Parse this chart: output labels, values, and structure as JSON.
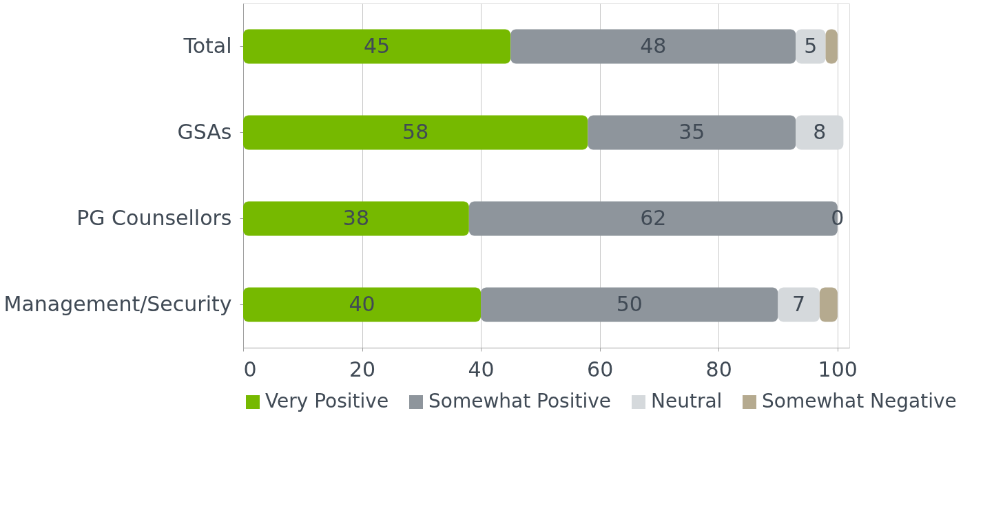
{
  "chart_data": {
    "type": "bar",
    "orientation": "horizontal",
    "stacked": true,
    "categories": [
      "Total",
      "GSAs",
      "PG Counsellors",
      "Management/Security"
    ],
    "series": [
      {
        "name": "Very Positive",
        "color": "#76b900",
        "values": [
          45,
          58,
          38,
          40
        ],
        "value_labels": [
          "45",
          "58",
          "38",
          "40"
        ]
      },
      {
        "name": "Somewhat Positive",
        "color": "#8e959c",
        "values": [
          48,
          35,
          62,
          50
        ],
        "value_labels": [
          "48",
          "35",
          "62",
          "50"
        ]
      },
      {
        "name": "Neutral",
        "color": "#d5d9dc",
        "values": [
          5,
          8,
          0,
          7
        ],
        "value_labels": [
          "5",
          "8",
          "0",
          "7"
        ]
      },
      {
        "name": "Somewhat Negative",
        "color": "#b5aa8f",
        "values": [
          2,
          0,
          0,
          3
        ],
        "value_labels": [
          null,
          null,
          null,
          null
        ]
      }
    ],
    "xlim": [
      0,
      102
    ],
    "xticks": [
      0,
      20,
      40,
      60,
      80,
      100
    ],
    "grid": "x",
    "legend": "bottom"
  }
}
